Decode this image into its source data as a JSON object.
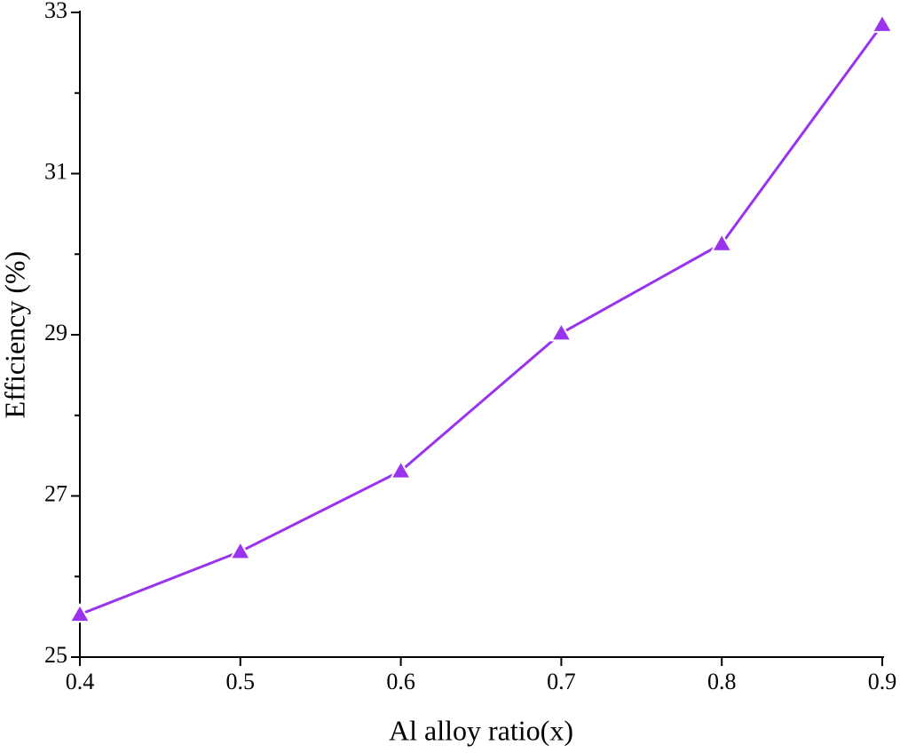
{
  "chart_data": {
    "type": "line",
    "x_label": "Al alloy ratio(x)",
    "y_label": "Efficiency (%)",
    "x": [
      0.4,
      0.5,
      0.6,
      0.7,
      0.8,
      0.9
    ],
    "series": [
      {
        "name": "Efficiency",
        "color": "#9933ee",
        "values": [
          25.53,
          26.31,
          27.31,
          29.02,
          30.13,
          32.85
        ]
      }
    ],
    "xlim": [
      0.4,
      0.9
    ],
    "xticks": [
      0.4,
      0.5,
      0.6,
      0.7,
      0.8,
      0.9
    ],
    "ylim": [
      25,
      33
    ],
    "yticks": [
      25,
      27,
      29,
      31,
      33
    ],
    "yminorticks": [
      26,
      28,
      30,
      32
    ],
    "marker": "triangle",
    "grid": false
  }
}
